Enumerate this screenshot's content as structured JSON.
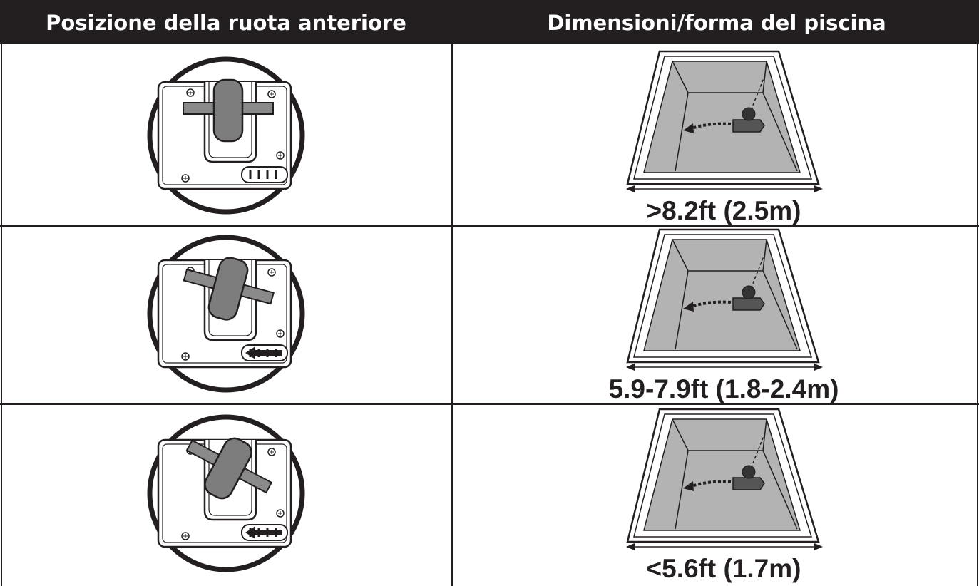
{
  "table": {
    "headers": [
      "Posizione della ruota anteriore",
      "Dimensioni/forma del piscina"
    ],
    "rows": [
      ">8.2ft (2.5m)",
      "5.9-7.9ft (1.8-2.4m)",
      "<5.6ft (1.7m)"
    ]
  }
}
